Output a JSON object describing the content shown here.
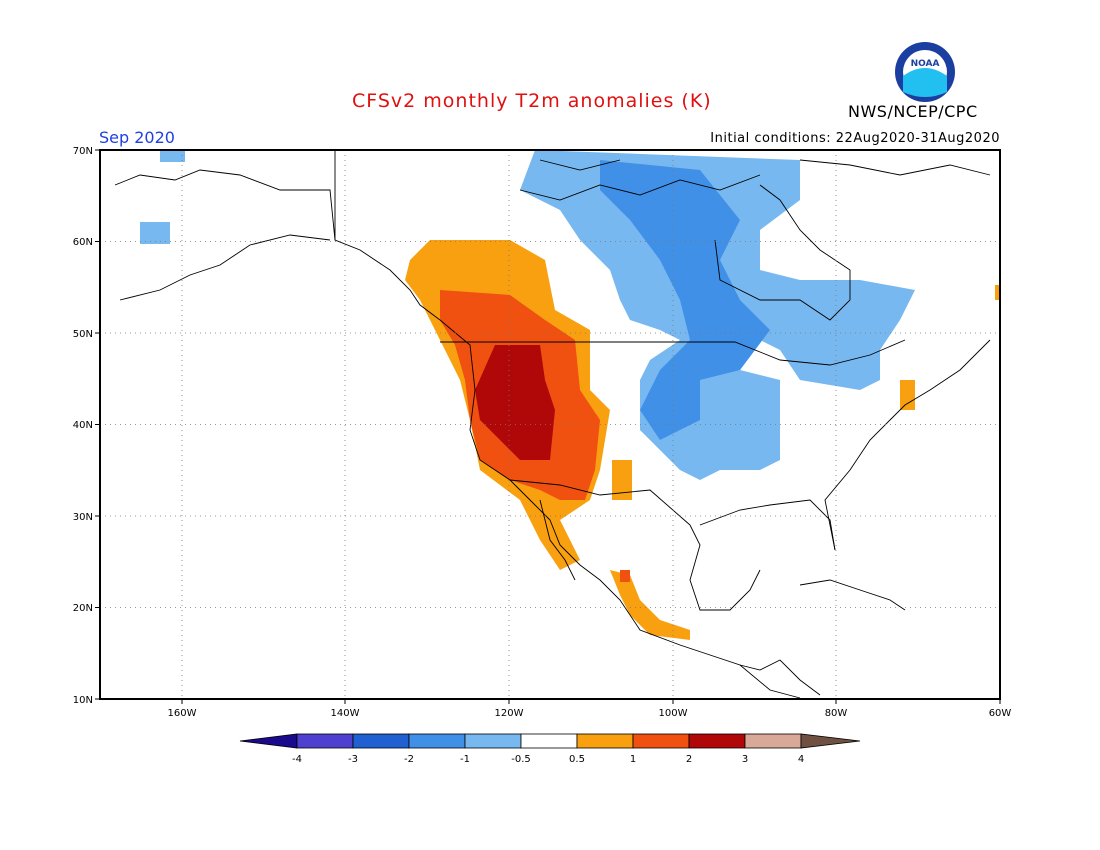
{
  "header": {
    "title": "CFSv2 monthly T2m anomalies (K)",
    "valid_month": "Sep 2020",
    "initial_conditions": "Initial conditions: 22Aug2020-31Aug2020",
    "agency": "NWS/NCEP/CPC",
    "logo_text": "NOAA"
  },
  "map": {
    "projection": "cylindrical",
    "lon_range": [
      -170,
      -60
    ],
    "lat_range": [
      10,
      70
    ],
    "lat_labels": [
      "70N",
      "60N",
      "50N",
      "40N",
      "30N",
      "20N",
      "10N"
    ],
    "lon_labels": [
      "160W",
      "140W",
      "120W",
      "100W",
      "80W",
      "60W"
    ],
    "gridlines": "dotted"
  },
  "colorbar": {
    "tick_labels": [
      "-4",
      "-3",
      "-2",
      "-1",
      "-0.5",
      "0.5",
      "1",
      "2",
      "3",
      "4"
    ],
    "colors": [
      "#1a0a8c",
      "#5040d0",
      "#2060d0",
      "#4090e8",
      "#78b8f0",
      "#ffffff",
      "#f8a010",
      "#f05010",
      "#b00808",
      "#d8a898",
      "#705040"
    ]
  },
  "anomaly_regions": [
    {
      "region": "Pacific Northwest / Interior West",
      "category": "1 to 2"
    },
    {
      "region": "Great Basin / Northern California",
      "category": "2 to 3"
    },
    {
      "region": "Western Canada coast",
      "category": "0.5 to 1"
    },
    {
      "region": "Central Canada / Hudson Bay",
      "category": "-1 to -0.5"
    },
    {
      "region": "Northern Plains / Upper Midwest",
      "category": "-1 to -0.5"
    },
    {
      "region": "Western Mexico coast",
      "category": "0.5 to 1"
    }
  ]
}
